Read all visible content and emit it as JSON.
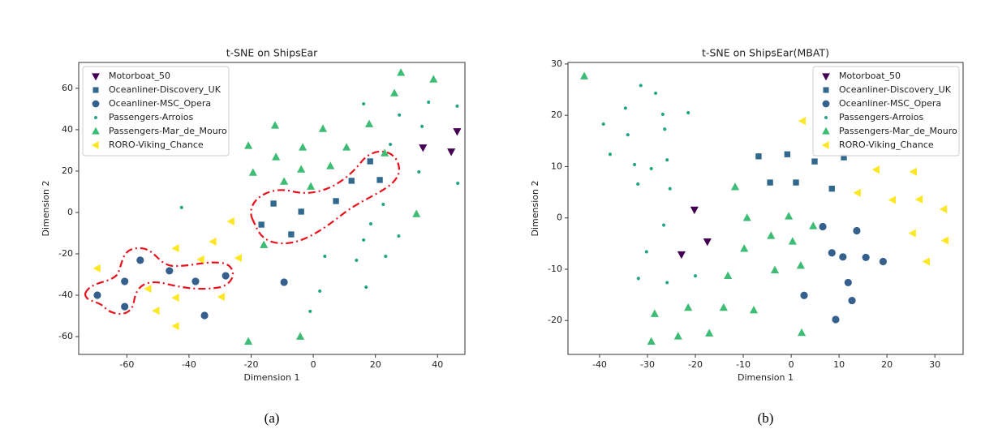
{
  "chart_data": [
    {
      "type": "scatter",
      "title": "t-SNE on ShipsEar",
      "x_label": "Dimension 1",
      "y_label": "Dimension 2",
      "caption": "(a)",
      "xlim": [
        -75.5,
        48.8
      ],
      "ylim": [
        -68.6,
        72.5
      ],
      "xticks": [
        -60,
        -40,
        -20,
        0,
        20,
        40
      ],
      "yticks": [
        -60,
        -40,
        -20,
        0,
        20,
        40,
        60
      ],
      "legend": "upper left",
      "series": [
        {
          "name": "Motorboat_50",
          "color": "#440154",
          "marker": "triangle-down",
          "x": [
            35.3,
            44.4,
            46.3
          ],
          "values": [
            31.4,
            29.4,
            39.2
          ]
        },
        {
          "name": "Oceanliner-Discovery_UK",
          "color": "#31688e",
          "marker": "square",
          "x": [
            -16.7,
            -12.8,
            -7.1,
            -3.9,
            7.3,
            12.3,
            18.3,
            21.4
          ],
          "values": [
            -5.9,
            4.3,
            -10.6,
            0.4,
            5.5,
            15.3,
            24.7,
            15.7
          ]
        },
        {
          "name": "Oceanliner-MSC_Opera",
          "color": "#35608d",
          "marker": "circle",
          "x": [
            -69.5,
            -60.7,
            -60.7,
            -55.7,
            -46.3,
            -37.9,
            -28.2,
            -35,
            -9.4
          ],
          "values": [
            -40,
            -33.3,
            -45.5,
            -23.1,
            -28.2,
            -33.3,
            -30.6,
            -49.8,
            -33.7
          ]
        },
        {
          "name": "Passengers-Arroios",
          "color": "#21a585",
          "marker": "dot",
          "x": [
            -42.4,
            -21.2,
            16.2,
            27.7,
            37.1,
            46.3,
            46.5,
            34,
            35,
            24.8,
            22.5,
            18.5,
            16.2,
            27.5,
            13.9,
            23.3,
            17,
            3.7,
            2.1,
            -1
          ],
          "values": [
            2.4,
            31.8,
            52.5,
            47.1,
            53.3,
            51.4,
            14.1,
            19.6,
            41.6,
            32.9,
            3.9,
            -5.5,
            -13.3,
            -11.4,
            -23.1,
            -21.2,
            -36.1,
            -21.2,
            -38,
            -47.8
          ]
        },
        {
          "name": "Passengers-Mar_de_Mouro",
          "color": "#3dbc74",
          "marker": "triangle-up",
          "x": [
            -20.9,
            -4.2,
            -15.9,
            -19.4,
            -20.9,
            -12.3,
            -12,
            -9.4,
            -3.9,
            -3.4,
            -0.8,
            3.1,
            5.5,
            10.7,
            18,
            23,
            26.1,
            28.2,
            38.7,
            33.2
          ],
          "values": [
            -62.4,
            -60,
            -15.7,
            19.2,
            32.2,
            42,
            26.7,
            14.9,
            20.8,
            31.4,
            12.5,
            40.4,
            22.4,
            31.4,
            42.7,
            28.6,
            57.6,
            67.5,
            64.3,
            -0.8
          ]
        },
        {
          "name": "RORO-Viking_Chance",
          "color": "#fde725",
          "marker": "triangle-left",
          "x": [
            -69.5,
            -53.1,
            -50.5,
            -44.2,
            -44.2,
            -44.2,
            -36.1,
            -32.2,
            -29.5,
            -26.4,
            -24
          ],
          "values": [
            -27,
            -36.9,
            -47.5,
            -17.3,
            -41.2,
            -54.9,
            -22.7,
            -14.1,
            -40.8,
            -4.3,
            -22
          ]
        }
      ]
    },
    {
      "type": "scatter",
      "title": "t-SNE on ShipsEar(MBAT)",
      "x_label": "Dimension 1",
      "y_label": "Dimension 2",
      "caption": "(b)",
      "xlim": [
        -46.6,
        35.9
      ],
      "ylim": [
        -26.6,
        30.3
      ],
      "xticks": [
        -40,
        -30,
        -20,
        -10,
        0,
        10,
        20,
        30
      ],
      "yticks": [
        -20,
        -10,
        0,
        10,
        20,
        30
      ],
      "legend": "upper right",
      "series": [
        {
          "name": "Motorboat_50",
          "color": "#440154",
          "marker": "triangle-down",
          "x": [
            -20.2,
            -17.5,
            -22.9
          ],
          "values": [
            1.6,
            -4.6,
            -7.1
          ]
        },
        {
          "name": "Oceanliner-Discovery_UK",
          "color": "#31688e",
          "marker": "square",
          "x": [
            -6.8,
            -4.4,
            -0.8,
            1,
            4.9,
            11,
            8.5
          ],
          "values": [
            12,
            6.9,
            12.4,
            6.9,
            11,
            11.8,
            5.7
          ]
        },
        {
          "name": "Oceanliner-MSC_Opera",
          "color": "#35608d",
          "marker": "circle",
          "x": [
            6.6,
            13.7,
            8.5,
            10.8,
            11.9,
            15.6,
            19.2,
            12.7,
            2.7,
            9.3
          ],
          "values": [
            -1.7,
            -2.5,
            -6.8,
            -7.6,
            -12.6,
            -7.7,
            -8.5,
            -16.1,
            -15.1,
            -19.8
          ]
        },
        {
          "name": "Passengers-Arroios",
          "color": "#21a585",
          "marker": "dot",
          "x": [
            -39.2,
            -37.8,
            -34.6,
            -34.1,
            -32.7,
            -31.4,
            -28.3,
            -26.8,
            -29.2,
            -32,
            -26.4,
            -25.9,
            -25.3,
            -26.6,
            -21.5,
            -30.2,
            -31.9,
            -25.9,
            -20,
            2.7
          ],
          "values": [
            18.3,
            12.4,
            21.4,
            16.2,
            10.4,
            25.8,
            24.3,
            20.2,
            9.6,
            6.6,
            17.3,
            11.3,
            5.7,
            -1.4,
            20.5,
            -6.6,
            -11.8,
            -12.6,
            -11.3,
            19.1
          ]
        },
        {
          "name": "Passengers-Mar_de_Mouro",
          "color": "#3dbc74",
          "marker": "triangle-up",
          "x": [
            -43.2,
            -28.5,
            -29.2,
            -21.5,
            -23.6,
            -17.1,
            -14.1,
            -13.2,
            -11.7,
            -9.2,
            -9.8,
            -7.8,
            -4.2,
            -3.4,
            -0.5,
            0.3,
            2,
            4.6,
            2.2
          ],
          "values": [
            27.6,
            -18.7,
            -24.1,
            -17.5,
            -23.1,
            -22.5,
            -17.5,
            -11.3,
            6,
            0,
            -6,
            -18,
            -3.5,
            -10.2,
            0.3,
            -4.6,
            -9.3,
            -1.6,
            -22.4
          ]
        },
        {
          "name": "RORO-Viking_Chance",
          "color": "#fde725",
          "marker": "triangle-left",
          "x": [
            2.4,
            13.9,
            17.8,
            21.2,
            25.6,
            26.8,
            25.4,
            28.3,
            31.9,
            32.2
          ],
          "values": [
            18.9,
            4.9,
            9.4,
            3.5,
            9,
            3.6,
            -3,
            -8.5,
            1.7,
            -4.4
          ]
        }
      ]
    }
  ]
}
